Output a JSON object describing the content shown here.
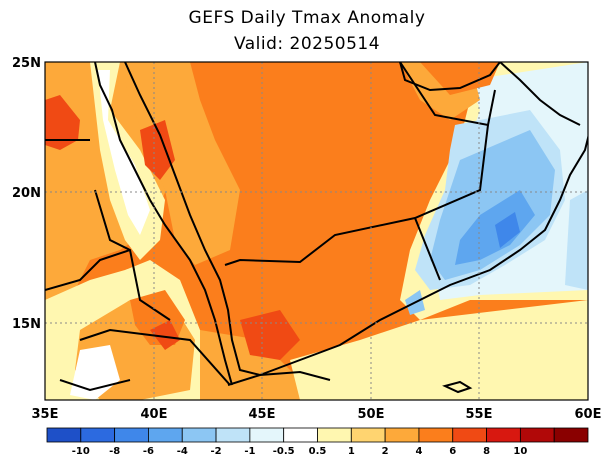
{
  "title": "GEFS Daily Tmax Anomaly",
  "subtitle": "Valid: 20250514",
  "map": {
    "lon_range": [
      35,
      60
    ],
    "lat_range": [
      12,
      25
    ],
    "lat_labels": [
      "25N",
      "20N",
      "15N"
    ],
    "lat_values": [
      25,
      20,
      15
    ],
    "lon_labels": [
      "35E",
      "40E",
      "45E",
      "50E",
      "55E",
      "60E"
    ],
    "lon_values": [
      35,
      40,
      45,
      50,
      55,
      60
    ],
    "grid": "dotted"
  },
  "colorbar": {
    "labels": [
      "-10",
      "-8",
      "-6",
      "-4",
      "-2",
      "-1",
      "-0.5",
      "0.5",
      "1",
      "2",
      "4",
      "6",
      "8",
      "10"
    ],
    "colors": [
      "#1e50c8",
      "#2c6ae0",
      "#3f87ea",
      "#5ea6ef",
      "#8cc6f3",
      "#bfe3f8",
      "#e4f6fb",
      "#ffffff",
      "#fff7b0",
      "#ffd470",
      "#fda93a",
      "#fb7e1c",
      "#f04a14",
      "#d81810",
      "#b10808",
      "#8a0000"
    ]
  }
}
